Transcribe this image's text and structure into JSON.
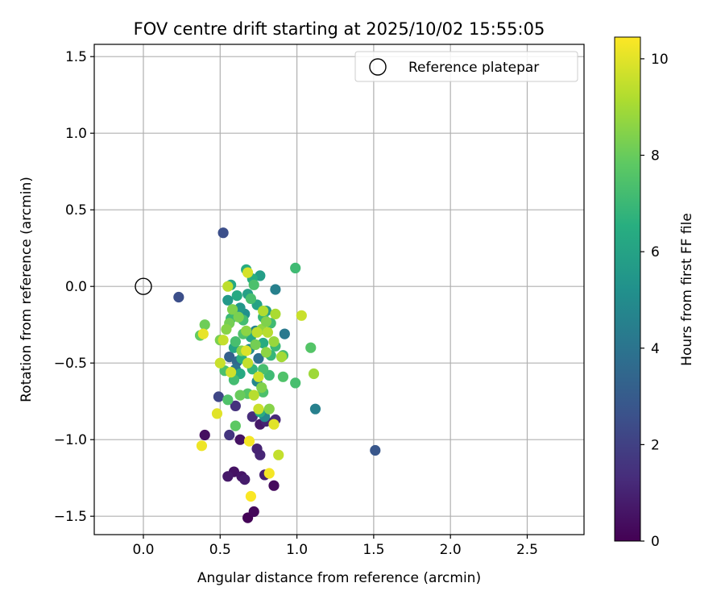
{
  "chart_data": {
    "type": "scatter",
    "title": "FOV centre drift starting at 2025/10/02 15:55:05",
    "xlabel": "Angular distance from reference (arcmin)",
    "ylabel": "Rotation from reference (arcmin)",
    "xlim": [
      -0.32,
      2.87
    ],
    "ylim": [
      -1.62,
      1.58
    ],
    "xticks": [
      0.0,
      0.5,
      1.0,
      1.5,
      2.0,
      2.5
    ],
    "xtick_labels": [
      "0.0",
      "0.5",
      "1.0",
      "1.5",
      "2.0",
      "2.5"
    ],
    "yticks": [
      -1.5,
      -1.0,
      -0.5,
      0.0,
      0.5,
      1.0,
      1.5
    ],
    "ytick_labels": [
      "−1.5",
      "−1.0",
      "−0.5",
      "0.0",
      "0.5",
      "1.0",
      "1.5"
    ],
    "grid": true,
    "legend": {
      "placement": "top-right",
      "entries": [
        "Reference platepar"
      ]
    },
    "reference_point": {
      "x": 0.0,
      "y": 0.0
    },
    "colorbar": {
      "label": "Hours from first FF file",
      "colormap": "viridis",
      "range": [
        0,
        10.45
      ],
      "ticks": [
        0,
        2,
        4,
        6,
        8,
        10
      ],
      "tick_labels": [
        "0",
        "2",
        "4",
        "6",
        "8",
        "10"
      ]
    },
    "points": [
      {
        "x": 0.68,
        "y": -1.51,
        "h": 0.1
      },
      {
        "x": 0.72,
        "y": -1.47,
        "h": 0.2
      },
      {
        "x": 0.85,
        "y": -1.3,
        "h": 0.3
      },
      {
        "x": 0.59,
        "y": -1.21,
        "h": 0.5
      },
      {
        "x": 0.55,
        "y": -1.24,
        "h": 0.7
      },
      {
        "x": 0.64,
        "y": -1.24,
        "h": 0.6
      },
      {
        "x": 0.66,
        "y": -1.26,
        "h": 0.8
      },
      {
        "x": 0.79,
        "y": -1.23,
        "h": 0.9
      },
      {
        "x": 0.4,
        "y": -0.97,
        "h": 0.4
      },
      {
        "x": 0.63,
        "y": -1.0,
        "h": 0.5
      },
      {
        "x": 0.56,
        "y": -0.97,
        "h": 1.6
      },
      {
        "x": 0.76,
        "y": -1.1,
        "h": 1.1
      },
      {
        "x": 0.74,
        "y": -1.06,
        "h": 1.0
      },
      {
        "x": 0.76,
        "y": -0.9,
        "h": 0.7
      },
      {
        "x": 0.8,
        "y": -0.88,
        "h": 1.0
      },
      {
        "x": 0.86,
        "y": -0.87,
        "h": 1.2
      },
      {
        "x": 0.71,
        "y": -0.85,
        "h": 1.3
      },
      {
        "x": 0.6,
        "y": -0.78,
        "h": 1.5
      },
      {
        "x": 0.49,
        "y": -0.72,
        "h": 2.2
      },
      {
        "x": 0.52,
        "y": 0.35,
        "h": 2.5
      },
      {
        "x": 0.23,
        "y": -0.07,
        "h": 2.5
      },
      {
        "x": 1.51,
        "y": -1.07,
        "h": 2.8
      },
      {
        "x": 1.12,
        "y": -0.8,
        "h": 4.5
      },
      {
        "x": 0.79,
        "y": -0.85,
        "h": 4.8
      },
      {
        "x": 0.76,
        "y": -0.82,
        "h": 6.5
      },
      {
        "x": 0.56,
        "y": -0.46,
        "h": 3.2
      },
      {
        "x": 0.61,
        "y": -0.49,
        "h": 3.5
      },
      {
        "x": 0.75,
        "y": -0.47,
        "h": 3.8
      },
      {
        "x": 0.92,
        "y": -0.31,
        "h": 4.2
      },
      {
        "x": 0.86,
        "y": -0.02,
        "h": 4.5
      },
      {
        "x": 0.6,
        "y": -0.54,
        "h": 4.0
      },
      {
        "x": 0.74,
        "y": -0.62,
        "h": 4.8
      },
      {
        "x": 0.66,
        "y": -0.18,
        "h": 5.2
      },
      {
        "x": 0.73,
        "y": -0.29,
        "h": 4.6
      },
      {
        "x": 0.69,
        "y": -0.41,
        "h": 5.0
      },
      {
        "x": 0.55,
        "y": -0.09,
        "h": 5.6
      },
      {
        "x": 0.63,
        "y": -0.14,
        "h": 5.5
      },
      {
        "x": 0.76,
        "y": 0.07,
        "h": 5.8
      },
      {
        "x": 0.68,
        "y": -0.05,
        "h": 5.9
      },
      {
        "x": 0.8,
        "y": -0.16,
        "h": 5.7
      },
      {
        "x": 0.57,
        "y": 0.01,
        "h": 6.2
      },
      {
        "x": 0.67,
        "y": 0.11,
        "h": 6.4
      },
      {
        "x": 0.71,
        "y": 0.05,
        "h": 6.5
      },
      {
        "x": 0.61,
        "y": -0.06,
        "h": 6.3
      },
      {
        "x": 0.74,
        "y": -0.12,
        "h": 6.0
      },
      {
        "x": 0.59,
        "y": -0.4,
        "h": 6.1
      },
      {
        "x": 0.64,
        "y": -0.47,
        "h": 6.6
      },
      {
        "x": 0.7,
        "y": -0.33,
        "h": 6.2
      },
      {
        "x": 0.78,
        "y": -0.37,
        "h": 6.4
      },
      {
        "x": 0.63,
        "y": -0.57,
        "h": 6.3
      },
      {
        "x": 0.71,
        "y": -0.54,
        "h": 6.8
      },
      {
        "x": 0.83,
        "y": -0.45,
        "h": 6.9
      },
      {
        "x": 0.86,
        "y": -0.39,
        "h": 7.0
      },
      {
        "x": 0.82,
        "y": -0.58,
        "h": 7.1
      },
      {
        "x": 0.57,
        "y": -0.21,
        "h": 7.0
      },
      {
        "x": 0.65,
        "y": -0.22,
        "h": 7.2
      },
      {
        "x": 0.7,
        "y": -0.08,
        "h": 7.3
      },
      {
        "x": 0.72,
        "y": 0.01,
        "h": 7.4
      },
      {
        "x": 0.78,
        "y": -0.2,
        "h": 6.9
      },
      {
        "x": 0.83,
        "y": -0.24,
        "h": 7.1
      },
      {
        "x": 0.6,
        "y": -0.36,
        "h": 7.3
      },
      {
        "x": 0.65,
        "y": -0.31,
        "h": 7.5
      },
      {
        "x": 0.53,
        "y": -0.55,
        "h": 7.4
      },
      {
        "x": 0.59,
        "y": -0.61,
        "h": 7.2
      },
      {
        "x": 0.55,
        "y": -0.74,
        "h": 7.5
      },
      {
        "x": 0.68,
        "y": -0.7,
        "h": 7.6
      },
      {
        "x": 0.78,
        "y": -0.69,
        "h": 7.4
      },
      {
        "x": 0.78,
        "y": -0.54,
        "h": 7.3
      },
      {
        "x": 0.91,
        "y": -0.45,
        "h": 7.2
      },
      {
        "x": 0.91,
        "y": -0.59,
        "h": 7.5
      },
      {
        "x": 0.99,
        "y": -0.63,
        "h": 7.3
      },
      {
        "x": 0.99,
        "y": 0.12,
        "h": 7.1
      },
      {
        "x": 1.09,
        "y": -0.4,
        "h": 7.6
      },
      {
        "x": 0.6,
        "y": -0.91,
        "h": 7.8
      },
      {
        "x": 0.63,
        "y": -0.71,
        "h": 8.0
      },
      {
        "x": 0.37,
        "y": -0.32,
        "h": 7.9
      },
      {
        "x": 0.4,
        "y": -0.25,
        "h": 8.1
      },
      {
        "x": 0.5,
        "y": -0.35,
        "h": 8.3
      },
      {
        "x": 0.56,
        "y": -0.24,
        "h": 8.2
      },
      {
        "x": 0.58,
        "y": -0.15,
        "h": 8.4
      },
      {
        "x": 0.54,
        "y": -0.28,
        "h": 8.5
      },
      {
        "x": 0.62,
        "y": -0.2,
        "h": 8.3
      },
      {
        "x": 0.67,
        "y": -0.29,
        "h": 8.6
      },
      {
        "x": 0.73,
        "y": -0.38,
        "h": 8.2
      },
      {
        "x": 0.77,
        "y": -0.28,
        "h": 8.7
      },
      {
        "x": 0.8,
        "y": -0.23,
        "h": 8.4
      },
      {
        "x": 0.85,
        "y": -0.36,
        "h": 8.8
      },
      {
        "x": 0.8,
        "y": -0.43,
        "h": 8.6
      },
      {
        "x": 0.64,
        "y": -0.42,
        "h": 8.5
      },
      {
        "x": 0.77,
        "y": -0.66,
        "h": 8.4
      },
      {
        "x": 0.82,
        "y": -0.8,
        "h": 8.5
      },
      {
        "x": 0.9,
        "y": -0.46,
        "h": 9.0
      },
      {
        "x": 0.86,
        "y": -0.18,
        "h": 9.1
      },
      {
        "x": 1.11,
        "y": -0.57,
        "h": 8.9
      },
      {
        "x": 0.78,
        "y": -0.16,
        "h": 9.2
      },
      {
        "x": 0.81,
        "y": -0.3,
        "h": 9.3
      },
      {
        "x": 0.74,
        "y": -0.3,
        "h": 9.4
      },
      {
        "x": 0.68,
        "y": -0.5,
        "h": 9.5
      },
      {
        "x": 0.72,
        "y": -0.71,
        "h": 9.3
      },
      {
        "x": 0.75,
        "y": -0.8,
        "h": 9.6
      },
      {
        "x": 0.57,
        "y": -0.56,
        "h": 9.7
      },
      {
        "x": 0.5,
        "y": -0.5,
        "h": 9.6
      },
      {
        "x": 0.52,
        "y": -0.35,
        "h": 9.5
      },
      {
        "x": 0.55,
        "y": 0.0,
        "h": 9.4
      },
      {
        "x": 0.68,
        "y": 0.09,
        "h": 9.8
      },
      {
        "x": 0.75,
        "y": -0.59,
        "h": 9.7
      },
      {
        "x": 0.67,
        "y": -0.42,
        "h": 9.9
      },
      {
        "x": 0.85,
        "y": -0.9,
        "h": 10.0
      },
      {
        "x": 0.88,
        "y": -1.1,
        "h": 9.5
      },
      {
        "x": 1.03,
        "y": -0.19,
        "h": 9.6
      },
      {
        "x": 0.39,
        "y": -0.31,
        "h": 10.1
      },
      {
        "x": 0.48,
        "y": -0.83,
        "h": 10.0
      },
      {
        "x": 0.38,
        "y": -1.04,
        "h": 10.2
      },
      {
        "x": 0.69,
        "y": -1.01,
        "h": 10.3
      },
      {
        "x": 0.7,
        "y": -1.37,
        "h": 10.4
      },
      {
        "x": 0.82,
        "y": -1.22,
        "h": 10.3
      }
    ]
  }
}
